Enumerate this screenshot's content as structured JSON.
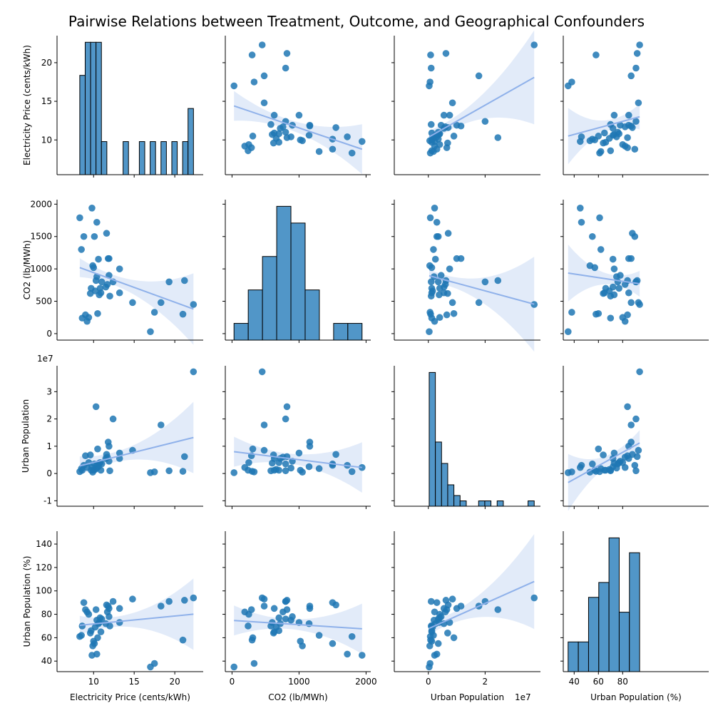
{
  "chart_data": {
    "type": "scatter",
    "title": "Pairwise Relations between Treatment, Outcome, and Geographical Confounders",
    "variables": [
      {
        "key": "price",
        "label": "Electricity Price (cents/kWh)",
        "range": [
          5.5,
          23.5
        ],
        "ticks": [
          10,
          15,
          20
        ],
        "y_ticks": [
          10,
          15,
          20
        ]
      },
      {
        "key": "co2",
        "label": "CO2 (lb/MWh)",
        "range": [
          -100,
          2070
        ],
        "ticks": [
          0,
          1000,
          2000
        ],
        "y_ticks": [
          0,
          500,
          1000,
          1500,
          2000
        ]
      },
      {
        "key": "urban",
        "label": "Urban Population",
        "range": [
          -1.2,
          3.95
        ],
        "ticks": [
          0,
          2
        ],
        "y_ticks": [
          -1,
          0,
          1,
          2,
          3
        ],
        "offset_label": "1e7"
      },
      {
        "key": "urban_pct",
        "label": "Urban Population (%)",
        "range": [
          31,
          151
        ],
        "ticks": [
          40,
          60,
          80
        ],
        "y_ticks": [
          40,
          60,
          80,
          100,
          120,
          140
        ]
      }
    ],
    "observations": [
      [
        22.3,
        450,
        3.73,
        94
      ],
      [
        21.2,
        820,
        0.62,
        92
      ],
      [
        21.0,
        300,
        0.08,
        58
      ],
      [
        19.3,
        800,
        0.1,
        91
      ],
      [
        18.3,
        480,
        1.78,
        87
      ],
      [
        17.5,
        330,
        0.06,
        38
      ],
      [
        17.0,
        30,
        0.03,
        35
      ],
      [
        14.8,
        480,
        0.85,
        93
      ],
      [
        13.2,
        1000,
        0.75,
        73
      ],
      [
        13.2,
        630,
        0.55,
        85
      ],
      [
        12.4,
        800,
        2.0,
        91
      ],
      [
        12.0,
        580,
        0.1,
        70
      ],
      [
        11.9,
        1160,
        1.0,
        85
      ],
      [
        11.8,
        1160,
        1.15,
        87
      ],
      [
        11.9,
        900,
        0.45,
        78
      ],
      [
        11.7,
        760,
        0.6,
        82
      ],
      [
        11.6,
        1550,
        0.7,
        88
      ],
      [
        11.5,
        720,
        0.55,
        72
      ],
      [
        11.0,
        800,
        0.35,
        76
      ],
      [
        10.9,
        630,
        0.12,
        65
      ],
      [
        10.8,
        700,
        0.4,
        77
      ],
      [
        10.7,
        600,
        0.38,
        73
      ],
      [
        10.6,
        1150,
        0.25,
        72
      ],
      [
        10.5,
        310,
        0.9,
        60
      ],
      [
        10.4,
        880,
        0.2,
        75
      ],
      [
        10.4,
        1720,
        0.3,
        46
      ],
      [
        10.3,
        820,
        2.45,
        84
      ],
      [
        10.2,
        660,
        0.15,
        69
      ],
      [
        10.1,
        1500,
        0.35,
        55
      ],
      [
        10.0,
        1020,
        0.12,
        57
      ],
      [
        9.9,
        1050,
        0.05,
        53
      ],
      [
        9.8,
        1940,
        0.22,
        45
      ],
      [
        9.7,
        700,
        0.12,
        66
      ],
      [
        9.6,
        620,
        0.68,
        64
      ],
      [
        9.4,
        250,
        0.4,
        80
      ],
      [
        9.2,
        190,
        0.22,
        82
      ],
      [
        9.0,
        290,
        0.65,
        84
      ],
      [
        8.8,
        1500,
        0.3,
        90
      ],
      [
        8.6,
        240,
        0.12,
        70
      ],
      [
        8.5,
        1300,
        0.18,
        62
      ],
      [
        8.3,
        1790,
        0.07,
        61
      ]
    ],
    "fit_lines": {
      "x_price": {
        "y_co2": [
          1020,
          380
        ],
        "y_urban": [
          0.28,
          1.32
        ],
        "y_urban_pct": [
          70.6,
          80.1
        ]
      },
      "x_co2": {
        "y_price": [
          14.4,
          8.8
        ],
        "y_urban": [
          0.8,
          0.22
        ],
        "y_urban_pct": [
          74.7,
          67.6
        ]
      },
      "x_urban": {
        "y_price": [
          10.4,
          18.1
        ],
        "y_co2": [
          895,
          455
        ],
        "y_urban_pct": [
          68,
          108
        ]
      },
      "x_urban_pct": {
        "y_price": [
          10.5,
          13.0
        ],
        "y_co2": [
          935,
          770
        ],
        "y_urban": [
          -0.33,
          1.12
        ]
      }
    },
    "hist_counts": {
      "price": [
        3,
        4,
        4,
        4,
        1,
        0,
        0,
        0,
        1,
        0,
        0,
        1,
        0,
        1,
        0,
        1,
        0,
        1,
        0,
        1,
        2
      ],
      "co2": [
        1,
        3,
        5,
        8,
        7,
        3,
        0,
        1,
        1
      ],
      "urban": [
        25,
        12,
        8,
        4,
        2,
        1,
        0,
        0,
        1,
        1,
        0,
        1,
        0,
        0,
        0,
        0,
        1
      ],
      "urban_pct": [
        2,
        2,
        5,
        6,
        9,
        4,
        8
      ]
    },
    "xlabel": "",
    "ylabel": ""
  }
}
